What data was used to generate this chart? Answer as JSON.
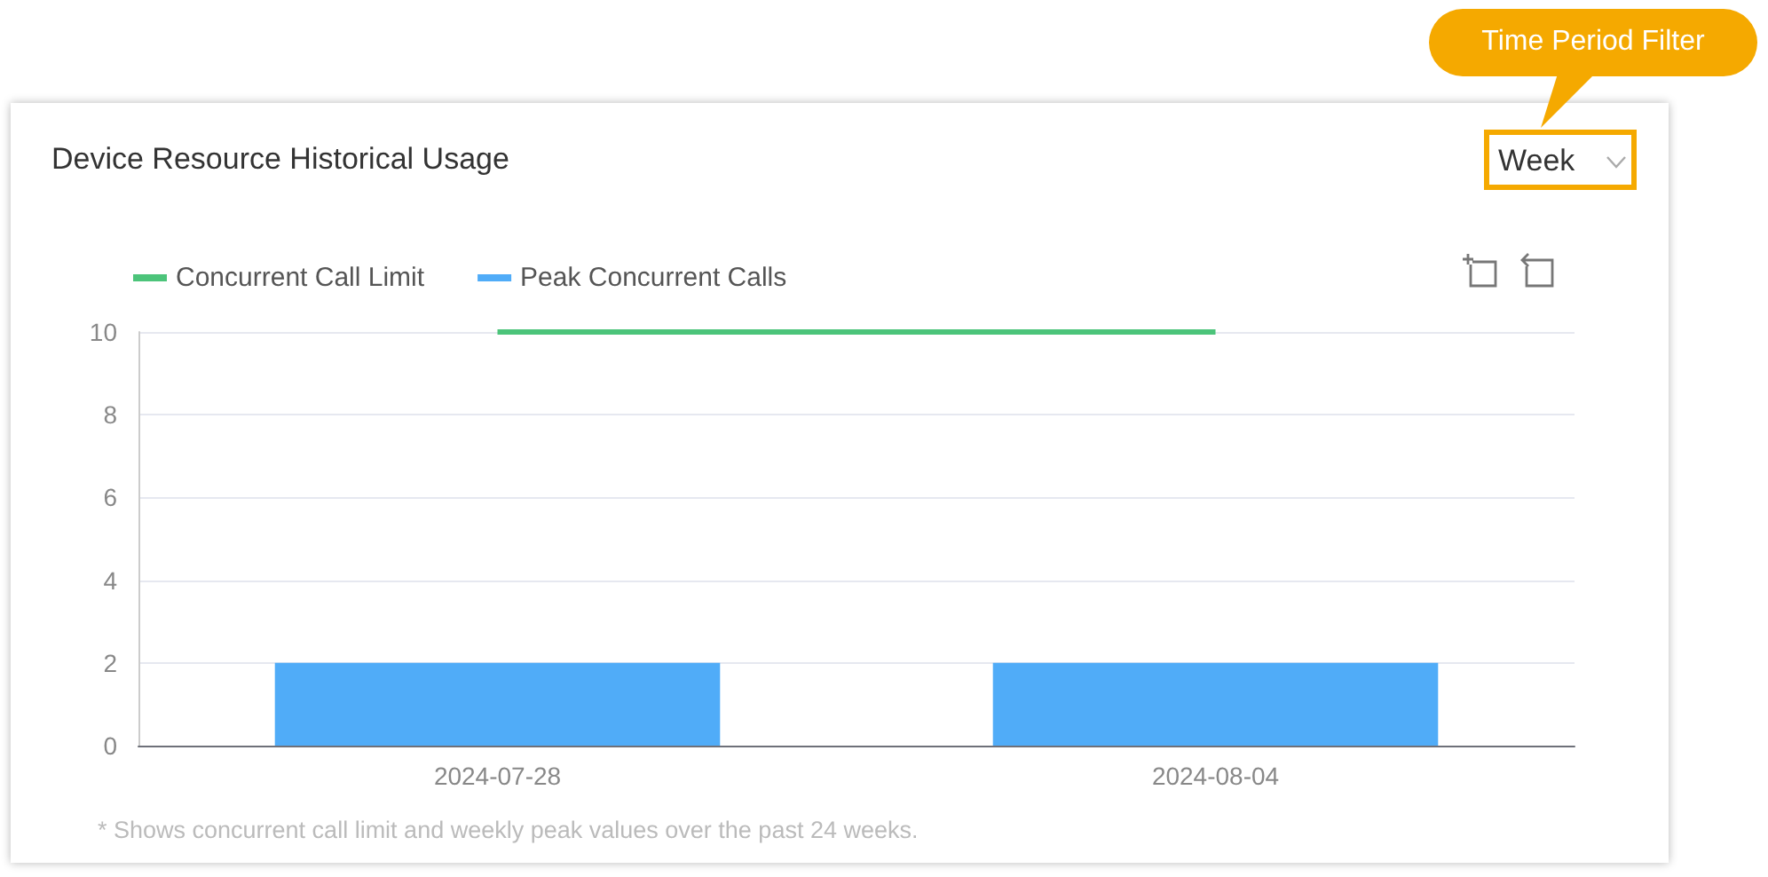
{
  "chart_data": {
    "type": "bar",
    "title": "Device Resource Historical Usage",
    "categories": [
      "2024-07-28",
      "2024-08-04"
    ],
    "series": [
      {
        "name": "Concurrent Call Limit",
        "type": "line",
        "color": "#4cc47a",
        "values": [
          10,
          10
        ]
      },
      {
        "name": "Peak Concurrent Calls",
        "type": "bar",
        "color": "#50acf8",
        "values": [
          2,
          2
        ]
      }
    ],
    "ylim": [
      0,
      10
    ],
    "yticks": [
      0,
      2,
      4,
      6,
      8,
      10
    ],
    "grid": "y",
    "legend": "top left",
    "marker": "none",
    "annotations": [
      "* Shows concurrent call limit and weekly peak values over the past 24 weeks.",
      "Week",
      "Time Period Filter"
    ]
  }
}
